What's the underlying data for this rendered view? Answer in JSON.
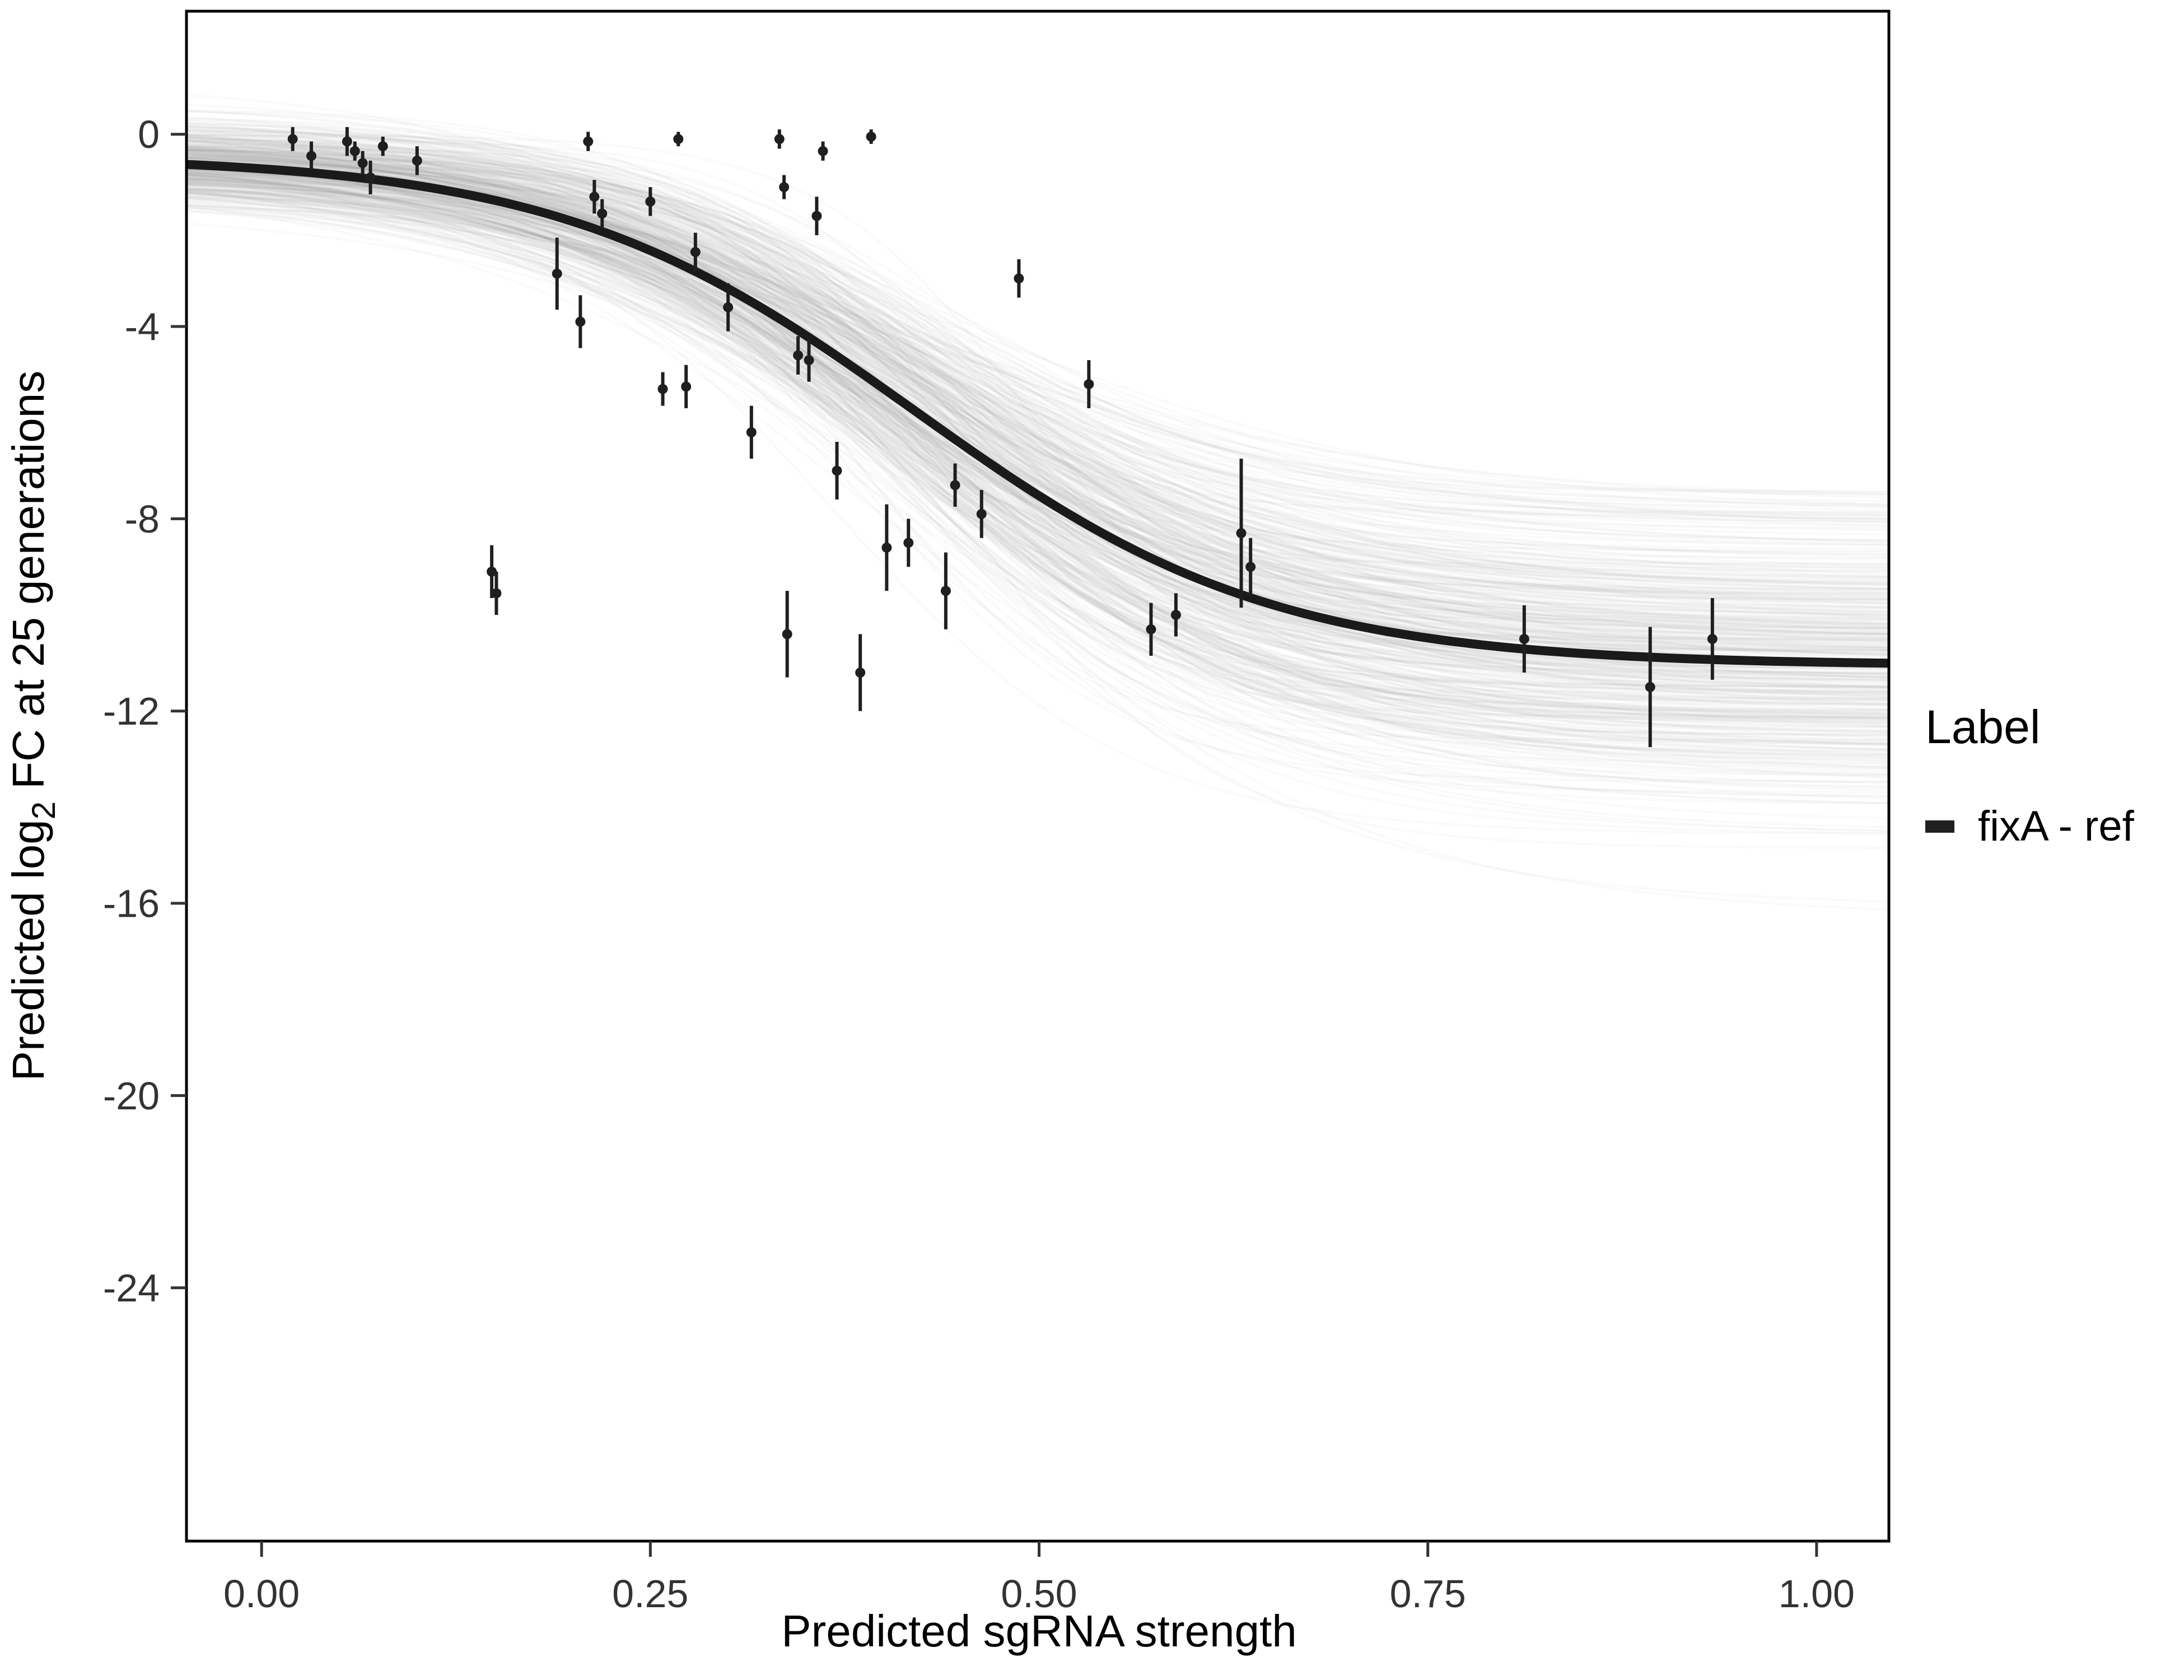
{
  "figure": {
    "background": "#ffffff",
    "panel_border_color": "#000000",
    "tick_color": "#333333",
    "axis_title_color": "#000000"
  },
  "chart_data": {
    "type": "scatter",
    "title": "",
    "xlabel": "Predicted sgRNA strength",
    "ylabel": "Predicted log2 FC at 25 generations",
    "ylabel_parts": {
      "pre": "Predicted  log",
      "sub": "2",
      "post": " FC at 25 generations"
    },
    "x_ticks": [
      0,
      0.25,
      0.5,
      0.75,
      1
    ],
    "x_tick_labels": [
      "0.00",
      "0.25",
      "0.50",
      "0.75",
      "1.00"
    ],
    "y_ticks": [
      0,
      -4,
      -8,
      -12,
      -16,
      -20,
      -24
    ],
    "y_tick_labels": [
      "0",
      "-4",
      "-8",
      "-12",
      "-16",
      "-20",
      "-24"
    ],
    "xlim": [
      -0.0483,
      1.0465
    ],
    "ylim": [
      -29.27,
      2.56
    ],
    "grid": false,
    "legend_position": "right",
    "legend": {
      "title": "Label",
      "items": [
        {
          "label": "fixA - ref",
          "color": "#1f1f1f"
        }
      ]
    },
    "fit_curve": {
      "model": "logistic",
      "top": -0.45,
      "bottom": -11.05,
      "x0": 0.42,
      "scale": 0.115,
      "color": "#1a1a1a",
      "width": 16
    },
    "posterior_band": {
      "draws": 420,
      "seed": 42,
      "color": "#969696",
      "opacity": 0.05,
      "width": 4,
      "top_sd": 0.45,
      "bottom_sd": 1.6,
      "x0_sd": 0.03,
      "scale_sd": 0.02
    },
    "point_color": "#1f1f1f",
    "point_radius": 9,
    "errorbar_width": 6,
    "points": [
      [
        0.02,
        -0.1,
        0.25
      ],
      [
        0.032,
        -0.45,
        0.3
      ],
      [
        0.055,
        -0.15,
        0.3
      ],
      [
        0.06,
        -0.35,
        0.2
      ],
      [
        0.065,
        -0.6,
        0.25
      ],
      [
        0.07,
        -0.9,
        0.35
      ],
      [
        0.078,
        -0.25,
        0.2
      ],
      [
        0.1,
        -0.55,
        0.3
      ],
      [
        0.148,
        -9.1,
        0.55
      ],
      [
        0.151,
        -9.55,
        0.45
      ],
      [
        0.19,
        -2.9,
        0.75
      ],
      [
        0.205,
        -3.9,
        0.55
      ],
      [
        0.21,
        -0.15,
        0.2
      ],
      [
        0.214,
        -1.3,
        0.35
      ],
      [
        0.219,
        -1.65,
        0.3
      ],
      [
        0.25,
        -1.4,
        0.3
      ],
      [
        0.258,
        -5.3,
        0.35
      ],
      [
        0.268,
        -0.1,
        0.15
      ],
      [
        0.273,
        -5.25,
        0.45
      ],
      [
        0.279,
        -2.45,
        0.4
      ],
      [
        0.3,
        -3.6,
        0.5
      ],
      [
        0.315,
        -6.2,
        0.55
      ],
      [
        0.333,
        -0.1,
        0.2
      ],
      [
        0.336,
        -1.1,
        0.25
      ],
      [
        0.338,
        -10.4,
        0.9
      ],
      [
        0.345,
        -4.6,
        0.4
      ],
      [
        0.352,
        -4.7,
        0.45
      ],
      [
        0.357,
        -1.7,
        0.4
      ],
      [
        0.361,
        -0.35,
        0.2
      ],
      [
        0.37,
        -7.0,
        0.6
      ],
      [
        0.385,
        -11.2,
        0.8
      ],
      [
        0.392,
        -0.05,
        0.15
      ],
      [
        0.402,
        -8.6,
        0.9
      ],
      [
        0.416,
        -8.5,
        0.5
      ],
      [
        0.44,
        -9.5,
        0.8
      ],
      [
        0.446,
        -7.3,
        0.45
      ],
      [
        0.463,
        -7.9,
        0.5
      ],
      [
        0.487,
        -3.0,
        0.4
      ],
      [
        0.532,
        -5.2,
        0.5
      ],
      [
        0.572,
        -10.3,
        0.55
      ],
      [
        0.588,
        -10.0,
        0.45
      ],
      [
        0.63,
        -8.3,
        1.55
      ],
      [
        0.636,
        -9.0,
        0.6
      ],
      [
        0.812,
        -10.5,
        0.7
      ],
      [
        0.893,
        -11.5,
        1.25
      ],
      [
        0.933,
        -10.5,
        0.85
      ]
    ]
  }
}
